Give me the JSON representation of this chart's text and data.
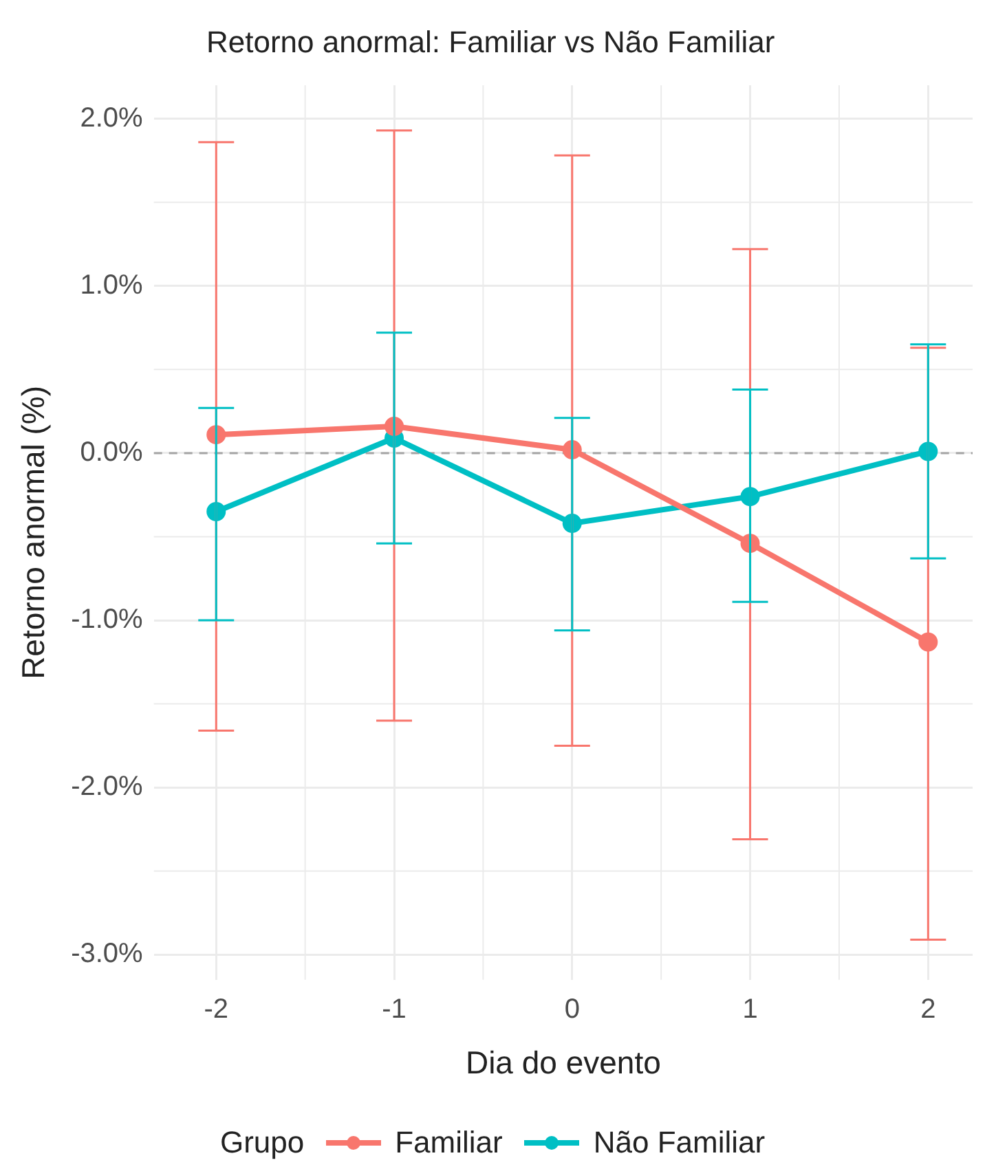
{
  "chart_data": {
    "type": "line",
    "title": "Retorno anormal: Familiar vs Não Familiar",
    "xlabel": "Dia do evento",
    "ylabel": "Retorno anormal (%)",
    "legend_title": "Grupo",
    "x": [
      -2,
      -1,
      0,
      1,
      2
    ],
    "series": [
      {
        "name": "Familiar",
        "color": "#f8766d",
        "values": [
          0.11,
          0.16,
          0.02,
          -0.54,
          -1.13
        ],
        "errors": [
          [
            -1.66,
            1.86
          ],
          [
            -1.6,
            1.93
          ],
          [
            -1.75,
            1.78
          ],
          [
            -2.31,
            1.22
          ],
          [
            -2.91,
            0.63
          ]
        ]
      },
      {
        "name": "Não Familiar",
        "color": "#00bfc4",
        "values": [
          -0.35,
          0.09,
          -0.42,
          -0.26,
          0.01
        ],
        "errors": [
          [
            -1.0,
            0.27
          ],
          [
            -0.54,
            0.72
          ],
          [
            -1.06,
            0.21
          ],
          [
            -0.89,
            0.38
          ],
          [
            -0.63,
            0.65
          ]
        ]
      }
    ],
    "xlim": [
      -2.35,
      2.25
    ],
    "xticks": [
      -2,
      -1,
      0,
      1,
      2
    ],
    "ylim": [
      -3.15,
      2.2
    ],
    "yticks": [
      {
        "value": -3,
        "label": "-3.0%"
      },
      {
        "value": -2,
        "label": "-2.0%"
      },
      {
        "value": -1,
        "label": "-1.0%"
      },
      {
        "value": 0,
        "label": "0.0%"
      },
      {
        "value": 1,
        "label": "1.0%"
      },
      {
        "value": 2,
        "label": "2.0%"
      }
    ],
    "ref_lines": [
      {
        "axis": "y",
        "value": 0,
        "color": "#a6a6a6",
        "line_style": "dashed"
      }
    ],
    "grid": true,
    "legend": "bottom",
    "marker": "circle",
    "line_style": "solid"
  }
}
